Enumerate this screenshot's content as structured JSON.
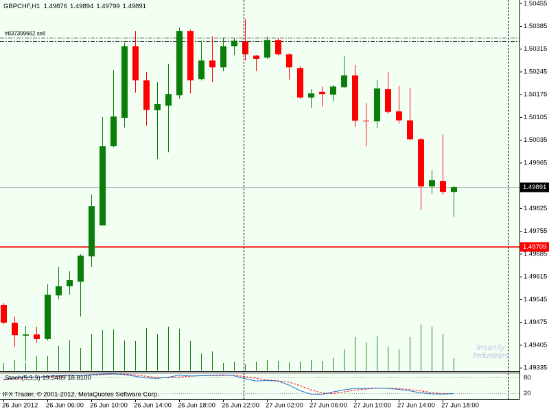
{
  "chart_data": {
    "type": "candlestick",
    "symbol": "GBPCHF,H1",
    "categories": [
      "26 Jun 2012",
      null,
      null,
      null,
      "26 Jun 06:00",
      null,
      null,
      null,
      "26 Jun 10:00",
      null,
      null,
      null,
      "26 Jun 14:00",
      null,
      null,
      null,
      "26 Jun 18:00",
      null,
      null,
      null,
      "26 Jun 22:00",
      null,
      null,
      null,
      "27 Jun 02:00",
      null,
      null,
      null,
      "27 Jun 06:00",
      null,
      null,
      null,
      "27 Jun 10:00",
      null,
      null,
      null,
      "27 Jun 14:00",
      null,
      null,
      null,
      "27 Jun 18:00",
      null
    ],
    "open": [
      1.49529,
      1.49474,
      1.49434,
      1.49438,
      1.49424,
      1.49558,
      1.49586,
      1.496,
      1.49678,
      1.49773,
      1.50017,
      1.50104,
      1.50324,
      1.50219,
      1.50127,
      1.50141,
      1.50173,
      1.50371,
      1.50223,
      1.5028,
      1.50259,
      1.50324,
      1.50339,
      1.50295,
      1.50289,
      1.50343,
      1.50299,
      1.50257,
      1.50166,
      1.50184,
      1.50175,
      1.50198,
      1.50234,
      1.50095,
      1.50093,
      1.50192,
      1.50124,
      1.50096,
      1.50038,
      1.49893,
      1.4991,
      1.49876
    ],
    "high": [
      1.49535,
      1.49493,
      1.49464,
      1.49462,
      1.49592,
      1.49645,
      1.49632,
      1.49685,
      1.49868,
      1.50106,
      1.50251,
      1.50335,
      1.50371,
      1.50245,
      1.50213,
      1.5027,
      1.50381,
      1.50375,
      1.50341,
      1.50354,
      1.50348,
      1.5035,
      1.50407,
      1.50297,
      1.50354,
      1.5035,
      1.50303,
      1.50262,
      1.50192,
      1.502,
      1.50205,
      1.50293,
      1.50266,
      1.5015,
      1.50221,
      1.50245,
      1.50202,
      1.50196,
      1.50042,
      1.49944,
      1.50053,
      1.49894
    ],
    "low": [
      1.4947,
      1.494,
      1.49356,
      1.49413,
      1.49419,
      1.49546,
      1.4956,
      1.49493,
      1.49645,
      1.49773,
      1.50013,
      1.50074,
      1.50181,
      1.5008,
      1.49977,
      1.49998,
      1.50162,
      1.50179,
      1.50219,
      1.50213,
      1.50247,
      1.50297,
      1.5028,
      1.50247,
      1.50285,
      1.50295,
      1.50221,
      1.50162,
      1.50135,
      1.50139,
      1.50155,
      1.50196,
      1.50076,
      1.50017,
      1.50072,
      1.50116,
      1.50087,
      1.50034,
      1.49821,
      1.4987,
      1.49868,
      1.49799
    ],
    "close": [
      1.49474,
      1.49436,
      1.49438,
      1.49424,
      1.4956,
      1.49586,
      1.49605,
      1.4968,
      1.49832,
      1.50017,
      1.50108,
      1.50324,
      1.50219,
      1.50128,
      1.50146,
      1.50177,
      1.50371,
      1.50219,
      1.5028,
      1.50259,
      1.50324,
      1.50341,
      1.50299,
      1.50285,
      1.50343,
      1.50299,
      1.50259,
      1.50166,
      1.50179,
      1.50177,
      1.502,
      1.50234,
      1.50095,
      1.50093,
      1.50194,
      1.50122,
      1.50096,
      1.50038,
      1.49893,
      1.49912,
      1.49876,
      1.49891
    ],
    "up_color": "#0a7d0a",
    "down_color": "#ff0000",
    "ylim": [
      1.49327,
      1.50466
    ],
    "yticks": [
      1.50455,
      1.50385,
      1.50315,
      1.50245,
      1.50175,
      1.50105,
      1.50035,
      1.49965,
      1.49825,
      1.49755,
      1.49685,
      1.49615,
      1.49545,
      1.49475,
      1.49405,
      1.49335
    ],
    "volume": {
      "color": "#0a7d0a",
      "ylim": [
        0,
        540
      ],
      "values": [
        11,
        16,
        11,
        21,
        21,
        36,
        44,
        33,
        53,
        59,
        60,
        44,
        43,
        62,
        53,
        64,
        61,
        43,
        25,
        28,
        11,
        13,
        9,
        13,
        15,
        14,
        12,
        13,
        15,
        14,
        18,
        31,
        49,
        41,
        50,
        35,
        31,
        49,
        67,
        64,
        53,
        18
      ]
    },
    "price_lines": [
      {
        "value": 1.49891,
        "color": "#b0b0b0",
        "label_color": "#000000",
        "text_color": "#ffffff"
      },
      {
        "value": 1.49709,
        "color": "#ff0000",
        "label_color": "#ff0000",
        "text_color": "#ffffff"
      }
    ],
    "order_lines": [
      {
        "value": 1.5035,
        "label": "#837399662 sell"
      },
      {
        "value": 1.50339
      }
    ],
    "stoch": {
      "label": "Stoch(5,3,3) 19.5489 18.8100",
      "ylim": [
        0,
        100
      ],
      "yticks": [
        80,
        20
      ],
      "main": {
        "color": "#1e6fd0",
        "values": [
          72,
          78,
          82,
          80,
          84,
          86,
          88,
          87,
          90,
          92,
          93,
          90,
          84,
          78,
          76,
          80,
          88,
          85,
          86,
          87,
          89,
          86,
          75,
          66,
          68,
          66,
          51,
          30,
          17,
          16,
          25,
          33,
          38,
          38,
          40,
          38,
          35,
          29,
          22,
          18,
          17,
          19.5489
        ]
      },
      "signal": {
        "color": "#ff0000",
        "values": [
          70,
          75,
          79,
          80,
          82,
          84,
          86,
          87,
          88,
          90,
          92,
          92,
          89,
          84,
          79,
          78,
          81,
          84,
          86,
          86,
          87,
          87,
          83,
          76,
          70,
          67,
          62,
          49,
          33,
          21,
          19,
          25,
          32,
          36,
          39,
          39,
          38,
          34,
          29,
          23,
          19,
          18.81
        ]
      }
    },
    "footer": "IFX Trader, © 2001-2012, MetaQuotes Software Corp.",
    "watermark": [
      "Insanity",
      "Industries"
    ]
  }
}
